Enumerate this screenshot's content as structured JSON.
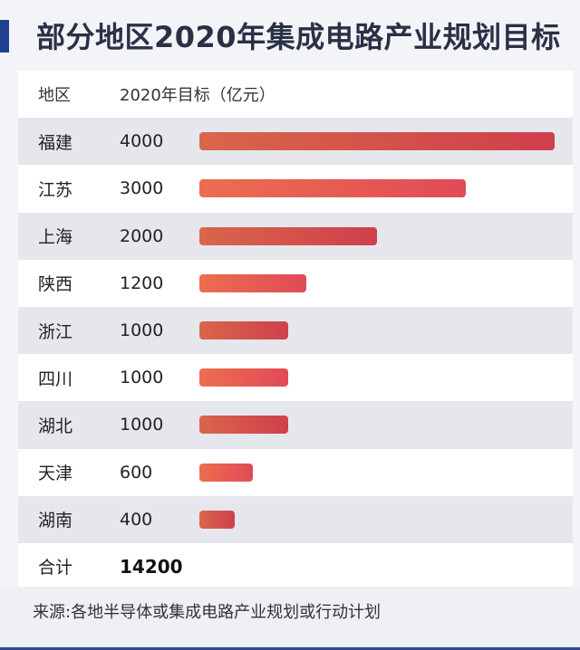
{
  "title": "部分地区2020年集成电路产业规划目标",
  "header": {
    "region": "地区",
    "target": "2020年目标（亿元）"
  },
  "rows": [
    {
      "region": "福建",
      "value": "4000"
    },
    {
      "region": "江苏",
      "value": "3000"
    },
    {
      "region": "上海",
      "value": "2000"
    },
    {
      "region": "陕西",
      "value": "1200"
    },
    {
      "region": "浙江",
      "value": "1000"
    },
    {
      "region": "四川",
      "value": "1000"
    },
    {
      "region": "湖北",
      "value": "1000"
    },
    {
      "region": "天津",
      "value": "600"
    },
    {
      "region": "湖南",
      "value": "400"
    }
  ],
  "total": {
    "label": "合计",
    "value": "14200"
  },
  "source": "来源:各地半导体或集成电路产业规划或行动计划",
  "colors": {
    "accent": "#1f3f8f",
    "bar_start": "#ec6e50",
    "bar_end": "#e14a56"
  },
  "chart_data": {
    "type": "bar",
    "orientation": "horizontal",
    "title": "部分地区2020年集成电路产业规划目标",
    "xlabel": "2020年目标（亿元）",
    "ylabel": "地区",
    "categories": [
      "福建",
      "江苏",
      "上海",
      "陕西",
      "浙江",
      "四川",
      "湖北",
      "天津",
      "湖南"
    ],
    "values": [
      4000,
      3000,
      2000,
      1200,
      1000,
      1000,
      1000,
      600,
      400
    ],
    "total": 14200,
    "xlim": [
      0,
      4000
    ],
    "grid": false
  }
}
